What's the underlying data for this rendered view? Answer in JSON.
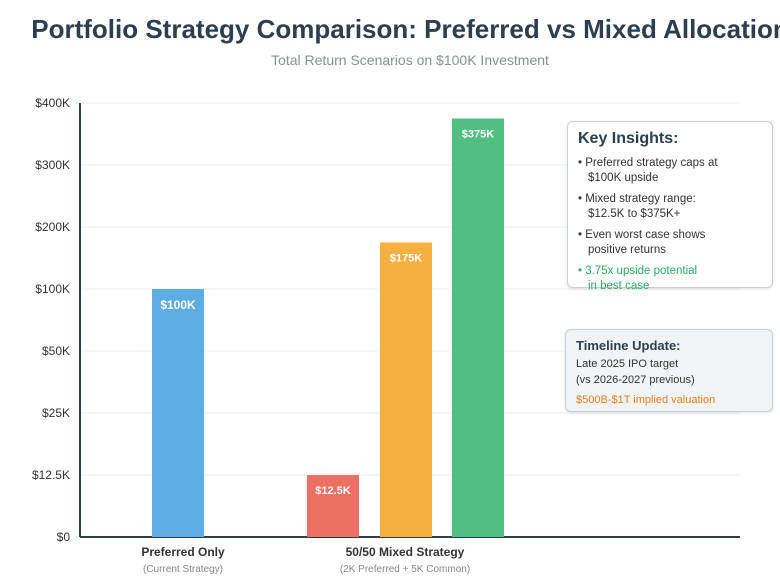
{
  "chart_data": {
    "type": "bar",
    "title": "Portfolio Strategy Comparison: Preferred vs Mixed Allocation",
    "subtitle": "Total Return Scenarios on $100K Investment",
    "y_ticks": [
      "$0",
      "$12.5K",
      "$25K",
      "$50K",
      "$100K",
      "$200K",
      "$300K",
      "$400K"
    ],
    "ylim": [
      0,
      400000
    ],
    "grid": true,
    "groups": [
      {
        "label": "Preferred Only",
        "sublabel": "(Current Strategy)"
      },
      {
        "label": "50/50 Mixed Strategy",
        "sublabel": "(2K Preferred + 5K Common)"
      }
    ],
    "bars": [
      {
        "group": 0,
        "value": 100000,
        "label": "$100K",
        "color": "#5dade2"
      },
      {
        "group": 1,
        "value": 12500,
        "label": "$12.5K",
        "color": "#ec7063"
      },
      {
        "group": 1,
        "value": 175000,
        "label": "$175K",
        "color": "#f5b041"
      },
      {
        "group": 1,
        "value": 375000,
        "label": "$375K",
        "color": "#52be80"
      }
    ]
  },
  "insights": {
    "title": "Key Insights:",
    "items": [
      {
        "bullet": "• Preferred strategy caps at",
        "cont": "$100K upside"
      },
      {
        "bullet": "• Mixed strategy range:",
        "cont": "$12.5K to $375K+"
      },
      {
        "bullet": "• Even worst case shows",
        "cont": "positive returns"
      },
      {
        "bullet": "• 3.75x upside potential",
        "cont": "in best case"
      }
    ]
  },
  "timeline": {
    "title": "Timeline Update:",
    "line1": "Late 2025 IPO target",
    "line2": "(vs 2026-2027 previous)",
    "valuation": "$500B-$1T implied valuation"
  }
}
